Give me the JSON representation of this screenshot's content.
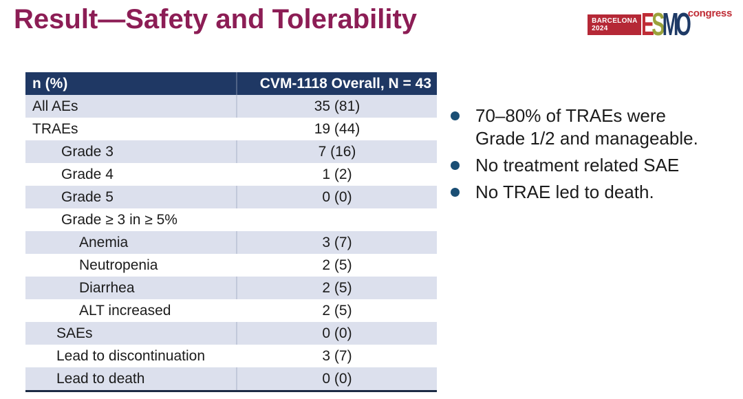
{
  "title": "Result—Safety and Tolerability",
  "logo": {
    "location": "BARCELONA",
    "year": "2024",
    "letters": [
      {
        "ch": "E",
        "color": "#bf2c35"
      },
      {
        "ch": "S",
        "color": "#9aa23b"
      },
      {
        "ch": "M",
        "color": "#1e3a66"
      },
      {
        "ch": "O",
        "color": "#1e3a66"
      }
    ],
    "congress": "congress"
  },
  "table": {
    "header": {
      "label": "n (%)",
      "value": "CVM-1118 Overall, N = 43"
    },
    "rows": [
      {
        "label": "All AEs",
        "value": "35 (81)",
        "indent": 0,
        "shaded": true
      },
      {
        "label": "TRAEs",
        "value": "19 (44)",
        "indent": 0,
        "shaded": false
      },
      {
        "label": "Grade 3",
        "value": "7 (16)",
        "indent": 2,
        "shaded": true
      },
      {
        "label": "Grade 4",
        "value": "1 (2)",
        "indent": 2,
        "shaded": false
      },
      {
        "label": "Grade 5",
        "value": "0 (0)",
        "indent": 2,
        "shaded": true
      },
      {
        "label": "Grade ≥ 3 in ≥ 5%",
        "value": "",
        "indent": 2,
        "shaded": false
      },
      {
        "label": "Anemia",
        "value": "3 (7)",
        "indent": 3,
        "shaded": true
      },
      {
        "label": "Neutropenia",
        "value": "2 (5)",
        "indent": 3,
        "shaded": false
      },
      {
        "label": "Diarrhea",
        "value": "2 (5)",
        "indent": 3,
        "shaded": true
      },
      {
        "label": "ALT increased",
        "value": "2 (5)",
        "indent": 3,
        "shaded": false
      },
      {
        "label": "SAEs",
        "value": "0 (0)",
        "indent": 1,
        "shaded": true
      },
      {
        "label": "Lead to discontinuation",
        "value": "3 (7)",
        "indent": 1,
        "shaded": false
      },
      {
        "label": "Lead to death",
        "value": "0 (0)",
        "indent": 1,
        "shaded": true
      }
    ]
  },
  "bullets": {
    "items": [
      "70–80% of TRAEs were Grade 1/2 and manageable.",
      "No treatment related SAE",
      "No TRAE led to death."
    ]
  },
  "colors": {
    "title": "#8c1d55",
    "header_bg": "#1f3864",
    "header_text": "#ffffff",
    "row_shaded": "#dce0ed",
    "row_divider": "#c2c8da",
    "table_bottom_border": "#1b2b45",
    "body_text": "#1b1b1b",
    "bullet_dot": "#1a4e74",
    "logo_badge_bg": "#b52836",
    "logo_red": "#bf2c35"
  }
}
